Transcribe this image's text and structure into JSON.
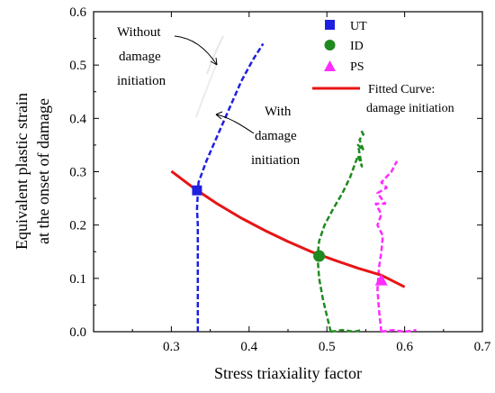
{
  "chart_data": {
    "type": "line",
    "xlabel": "Stress triaxiality factor",
    "ylabel_lines": [
      "Equivalent plastic strain",
      "at the onset of damage"
    ],
    "xlim": [
      0.2,
      0.7
    ],
    "ylim": [
      0.0,
      0.6
    ],
    "xticks": [
      "0.3",
      "0.4",
      "0.5",
      "0.6",
      "0.7"
    ],
    "yticks": [
      "0.0",
      "0.1",
      "0.2",
      "0.3",
      "0.4",
      "0.5",
      "0.6"
    ],
    "xtick_values": [
      0.3,
      0.4,
      0.5,
      0.6,
      0.7
    ],
    "ytick_values": [
      0.0,
      0.1,
      0.2,
      0.3,
      0.4,
      0.5,
      0.6
    ],
    "legend_position": "top-right",
    "legend": [
      {
        "label": "UT",
        "marker": "square",
        "color": "#1f1fe0"
      },
      {
        "label": "ID",
        "marker": "circle",
        "color": "#1f8a1f"
      },
      {
        "label": "PS",
        "marker": "triangle",
        "color": "#ff2bff"
      },
      {
        "label_lines": [
          "Fitted Curve:",
          "damage initiation"
        ],
        "marker": "line",
        "color": "#e81414"
      }
    ],
    "points": [
      {
        "name": "UT",
        "x": 0.333,
        "y": 0.265,
        "marker": "square",
        "color": "#1f1fe0"
      },
      {
        "name": "ID",
        "x": 0.49,
        "y": 0.142,
        "marker": "circle",
        "color": "#1f8a1f"
      },
      {
        "name": "PS",
        "x": 0.57,
        "y": 0.097,
        "marker": "triangle",
        "color": "#ff2bff"
      }
    ],
    "fitted_curve": {
      "color": "#e81414",
      "x": [
        0.3,
        0.33,
        0.36,
        0.39,
        0.42,
        0.45,
        0.48,
        0.51,
        0.54,
        0.57,
        0.6
      ],
      "y": [
        0.301,
        0.268,
        0.239,
        0.213,
        0.19,
        0.169,
        0.15,
        0.134,
        0.119,
        0.106,
        0.084
      ]
    },
    "paths": [
      {
        "name": "UT path",
        "color": "#1f1fe0",
        "x": [
          0.334,
          0.334,
          0.334,
          0.334,
          0.334,
          0.333,
          0.334,
          0.335,
          0.345,
          0.36,
          0.375,
          0.39,
          0.405,
          0.418
        ],
        "y": [
          0.0,
          0.05,
          0.1,
          0.15,
          0.2,
          0.23,
          0.26,
          0.28,
          0.32,
          0.37,
          0.42,
          0.47,
          0.51,
          0.54
        ]
      },
      {
        "name": "ID path",
        "color": "#1f8a1f",
        "x": [
          0.505,
          0.5,
          0.495,
          0.49,
          0.488,
          0.49,
          0.497,
          0.508,
          0.52,
          0.53,
          0.535,
          0.54,
          0.545,
          0.54,
          0.547,
          0.542,
          0.547,
          0.543
        ],
        "y": [
          0.0,
          0.03,
          0.06,
          0.1,
          0.14,
          0.17,
          0.2,
          0.23,
          0.26,
          0.29,
          0.31,
          0.33,
          0.31,
          0.35,
          0.34,
          0.36,
          0.37,
          0.38
        ]
      },
      {
        "name": "ID tail",
        "color": "#1f8a1f",
        "x": [
          0.505,
          0.52,
          0.535,
          0.545
        ],
        "y": [
          0.0,
          0.003,
          0.0,
          0.003
        ]
      },
      {
        "name": "PS path",
        "color": "#ff2bff",
        "x": [
          0.57,
          0.567,
          0.565,
          0.567,
          0.57,
          0.572,
          0.565,
          0.57,
          0.563,
          0.575,
          0.565,
          0.577,
          0.57,
          0.583,
          0.59
        ],
        "y": [
          0.0,
          0.04,
          0.08,
          0.12,
          0.15,
          0.18,
          0.2,
          0.22,
          0.24,
          0.24,
          0.26,
          0.27,
          0.28,
          0.3,
          0.32
        ]
      },
      {
        "name": "PS tail",
        "color": "#ff2bff",
        "x": [
          0.57,
          0.585,
          0.6,
          0.615
        ],
        "y": [
          0.0,
          0.003,
          0.0,
          0.003
        ]
      }
    ],
    "annotations": [
      {
        "lines": [
          "Without",
          "damage",
          "initiation"
        ]
      },
      {
        "lines": [
          "With",
          "damage",
          "initiation"
        ]
      }
    ]
  }
}
